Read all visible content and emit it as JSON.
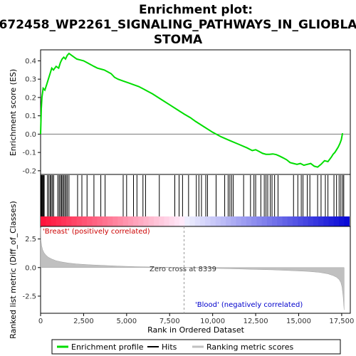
{
  "chart_data": [
    {
      "type": "line",
      "panel": "enrichment-profile",
      "title_lines": [
        "Enrichment plot:",
        "672458_WP2261_SIGNALING_PATHWAYS_IN_GLIOBLA",
        "STOMA"
      ],
      "ylabel": "Enrichment score (ES)",
      "ylim": [
        -0.22,
        0.46
      ],
      "yticks": [
        -0.2,
        -0.1,
        0.0,
        0.1,
        0.2,
        0.3,
        0.4
      ],
      "ytick_labels": [
        "-0.2",
        "-0.1",
        "0.0",
        "0.1",
        "0.2",
        "0.3",
        "0.4"
      ],
      "xlim": [
        0,
        18000
      ],
      "line_color": "#00dd00",
      "x": [
        0,
        40,
        80,
        150,
        250,
        350,
        450,
        550,
        650,
        750,
        900,
        1050,
        1150,
        1250,
        1350,
        1450,
        1550,
        1650,
        1800,
        1950,
        2100,
        2300,
        2500,
        2700,
        2900,
        3100,
        3300,
        3500,
        3700,
        3900,
        4100,
        4300,
        4500,
        4800,
        5100,
        5400,
        5700,
        6000,
        6500,
        7000,
        7500,
        8000,
        8339,
        8700,
        9000,
        9500,
        10000,
        10500,
        11000,
        11500,
        12000,
        12300,
        12500,
        12700,
        12900,
        13100,
        13300,
        13500,
        13700,
        13900,
        14100,
        14300,
        14500,
        14700,
        14900,
        15100,
        15300,
        15500,
        15700,
        15900,
        16100,
        16300,
        16500,
        16700,
        16900,
        17000,
        17100,
        17200,
        17300,
        17400,
        17480,
        17550
      ],
      "y": [
        0.0,
        0.14,
        0.2,
        0.25,
        0.24,
        0.27,
        0.3,
        0.33,
        0.36,
        0.35,
        0.37,
        0.36,
        0.39,
        0.41,
        0.42,
        0.41,
        0.43,
        0.44,
        0.43,
        0.42,
        0.41,
        0.405,
        0.4,
        0.39,
        0.38,
        0.37,
        0.36,
        0.355,
        0.35,
        0.34,
        0.33,
        0.31,
        0.3,
        0.29,
        0.28,
        0.27,
        0.26,
        0.245,
        0.22,
        0.19,
        0.16,
        0.13,
        0.11,
        0.09,
        0.07,
        0.04,
        0.01,
        -0.015,
        -0.035,
        -0.055,
        -0.075,
        -0.09,
        -0.085,
        -0.095,
        -0.105,
        -0.11,
        -0.11,
        -0.108,
        -0.112,
        -0.12,
        -0.13,
        -0.14,
        -0.155,
        -0.16,
        -0.165,
        -0.16,
        -0.17,
        -0.165,
        -0.16,
        -0.175,
        -0.18,
        -0.165,
        -0.145,
        -0.15,
        -0.125,
        -0.11,
        -0.1,
        -0.085,
        -0.07,
        -0.05,
        -0.03,
        0.005
      ]
    },
    {
      "type": "scatter",
      "panel": "hits",
      "xlim": [
        0,
        18000
      ],
      "hit_color": "#000000",
      "hits": [
        30,
        60,
        90,
        130,
        170,
        210,
        400,
        480,
        560,
        620,
        690,
        760,
        1000,
        1080,
        1150,
        1220,
        1280,
        1350,
        1420,
        1490,
        1560,
        1650,
        2150,
        2400,
        2700,
        3100,
        3500,
        3750,
        4800,
        5000,
        5400,
        5600,
        5950,
        6100,
        6900,
        7800,
        8050,
        8250,
        8600,
        9050,
        9200,
        9350,
        9600,
        9700,
        10200,
        10700,
        10900,
        11000,
        11100,
        11200,
        11800,
        12200,
        12400,
        12500,
        12800,
        13000,
        13100,
        13200,
        13350,
        13450,
        13600,
        13800,
        14700,
        14950,
        15150,
        15250,
        15500,
        15650,
        16100,
        16300,
        16550,
        16700,
        17050,
        17200,
        17350,
        17450,
        17550,
        17620
      ]
    },
    {
      "type": "area",
      "panel": "ranking-metric",
      "xlabel": "Rank in Ordered Dataset",
      "ylabel": "Ranked list metric (Diff_of_Classes)",
      "ylim": [
        -4.0,
        3.6
      ],
      "yticks": [
        -2.5,
        0.0,
        2.5
      ],
      "ytick_labels": [
        "-2.5",
        "0.0",
        "2.5"
      ],
      "xlim": [
        0,
        18000
      ],
      "xticks": [
        0,
        2500,
        5000,
        7500,
        10000,
        12500,
        15000,
        17500
      ],
      "xtick_labels": [
        "0",
        "2,500",
        "5,000",
        "7,500",
        "10,000",
        "12,500",
        "15,000",
        "17,500"
      ],
      "fill_color": "#c0c0c0",
      "x": [
        0,
        20,
        60,
        120,
        200,
        300,
        450,
        650,
        900,
        1200,
        1600,
        2100,
        2800,
        3600,
        4500,
        5500,
        6500,
        7500,
        8339,
        9500,
        10500,
        11500,
        12500,
        13500,
        14500,
        15500,
        16200,
        16700,
        17000,
        17200,
        17350,
        17450,
        17520,
        17580,
        17640
      ],
      "y": [
        3.5,
        2.4,
        1.9,
        1.55,
        1.3,
        1.1,
        0.9,
        0.75,
        0.6,
        0.5,
        0.4,
        0.32,
        0.25,
        0.19,
        0.13,
        0.08,
        0.05,
        0.02,
        0.0,
        -0.04,
        -0.08,
        -0.12,
        -0.16,
        -0.2,
        -0.26,
        -0.33,
        -0.42,
        -0.55,
        -0.7,
        -0.85,
        -1.05,
        -1.3,
        -1.7,
        -2.5,
        -3.7
      ],
      "zero_cross_rank": 8339,
      "annotations": {
        "zero_cross": "Zero cross at 8339",
        "positive": "'Breast' (positively correlated)",
        "negative": "'Blood' (negatively correlated)"
      }
    }
  ],
  "legend": {
    "items": [
      {
        "label": "Enrichment profile",
        "color": "#00dd00"
      },
      {
        "label": "Hits",
        "color": "#000000"
      },
      {
        "label": "Ranking metric scores",
        "color": "#c0c0c0"
      }
    ]
  }
}
